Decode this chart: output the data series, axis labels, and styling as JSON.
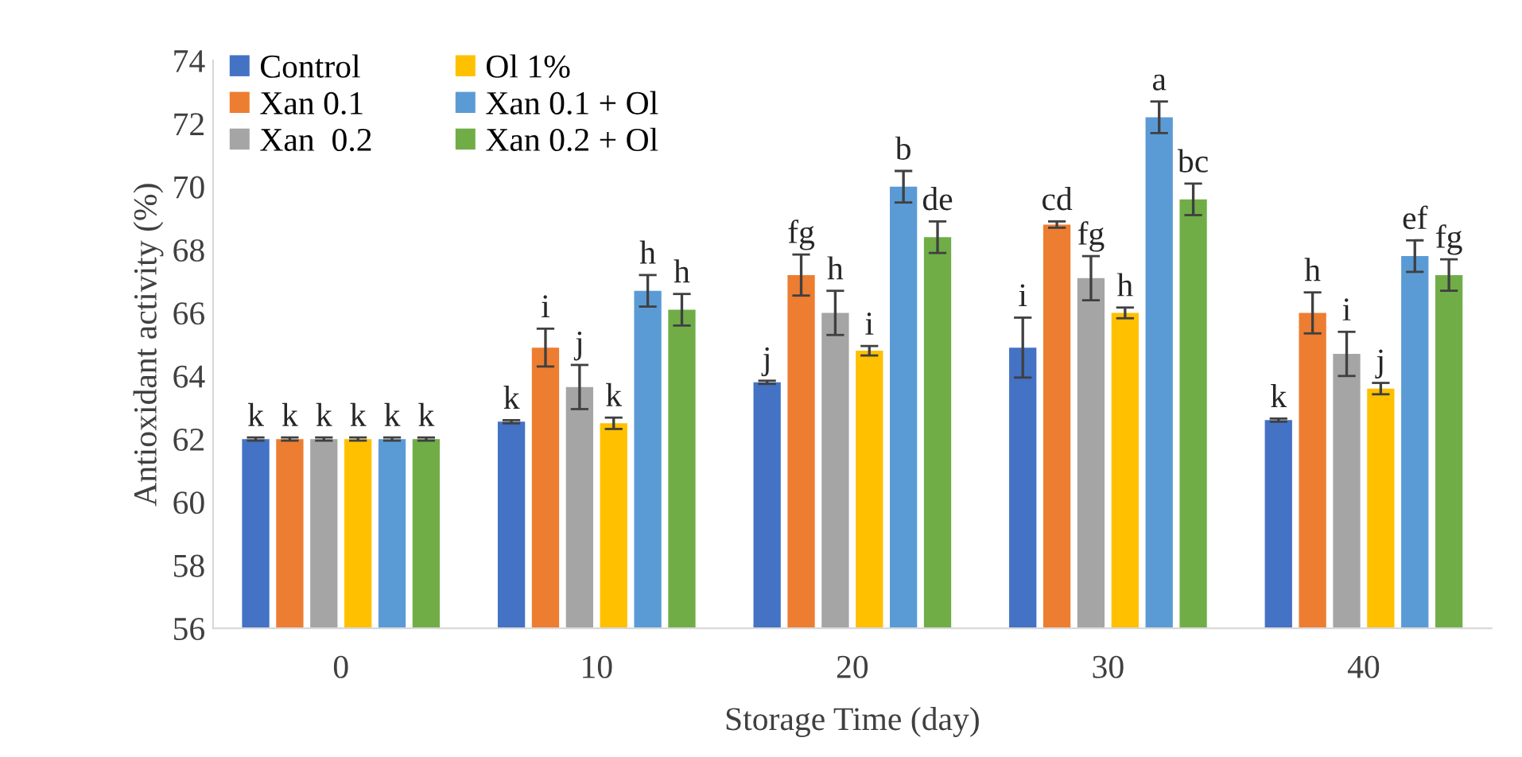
{
  "chart_data": {
    "type": "bar",
    "xlabel": "Storage Time (day)",
    "ylabel": "Antioxidant activity (%)",
    "categories": [
      "0",
      "10",
      "20",
      "30",
      "40"
    ],
    "ylim": [
      56,
      74
    ],
    "yticks": [
      56,
      58,
      60,
      62,
      64,
      66,
      68,
      70,
      72,
      74
    ],
    "grid": false,
    "legend": "top left",
    "series": [
      {
        "name": "Control",
        "color": "#4472c4",
        "values": [
          62.0,
          62.55,
          63.8,
          64.9,
          62.6
        ],
        "errors": [
          0.05,
          0.05,
          0.05,
          0.95,
          0.05
        ],
        "value_labels": [
          "k",
          "k",
          "j",
          "i",
          "k"
        ]
      },
      {
        "name": "Xan 0.1",
        "color": "#ed7d31",
        "values": [
          62.0,
          64.9,
          67.2,
          68.8,
          66.0
        ],
        "errors": [
          0.05,
          0.6,
          0.65,
          0.1,
          0.65
        ],
        "value_labels": [
          "k",
          "i",
          "fg",
          "cd",
          "h"
        ]
      },
      {
        "name": "Xan  0.2",
        "color": "#a5a5a5",
        "values": [
          62.0,
          63.65,
          66.0,
          67.1,
          64.7
        ],
        "errors": [
          0.05,
          0.7,
          0.7,
          0.7,
          0.7
        ],
        "value_labels": [
          "k",
          "j",
          "h",
          "fg",
          "i"
        ]
      },
      {
        "name": "Ol 1%",
        "color": "#ffc000",
        "values": [
          62.0,
          62.5,
          64.8,
          66.0,
          63.6
        ],
        "errors": [
          0.05,
          0.18,
          0.15,
          0.17,
          0.18
        ],
        "value_labels": [
          "k",
          "k",
          "i",
          "h",
          "j"
        ]
      },
      {
        "name": "Xan 0.1 + Ol",
        "color": "#5b9bd5",
        "values": [
          62.0,
          66.7,
          70.0,
          72.2,
          67.8
        ],
        "errors": [
          0.05,
          0.5,
          0.5,
          0.5,
          0.5
        ],
        "value_labels": [
          "k",
          "h",
          "b",
          "a",
          "ef"
        ]
      },
      {
        "name": "Xan 0.2 + Ol",
        "color": "#70ad47",
        "values": [
          62.0,
          66.1,
          68.4,
          69.6,
          67.2
        ],
        "errors": [
          0.05,
          0.5,
          0.5,
          0.5,
          0.5
        ],
        "value_labels": [
          "k",
          "h",
          "de",
          "bc",
          "fg"
        ]
      }
    ]
  }
}
